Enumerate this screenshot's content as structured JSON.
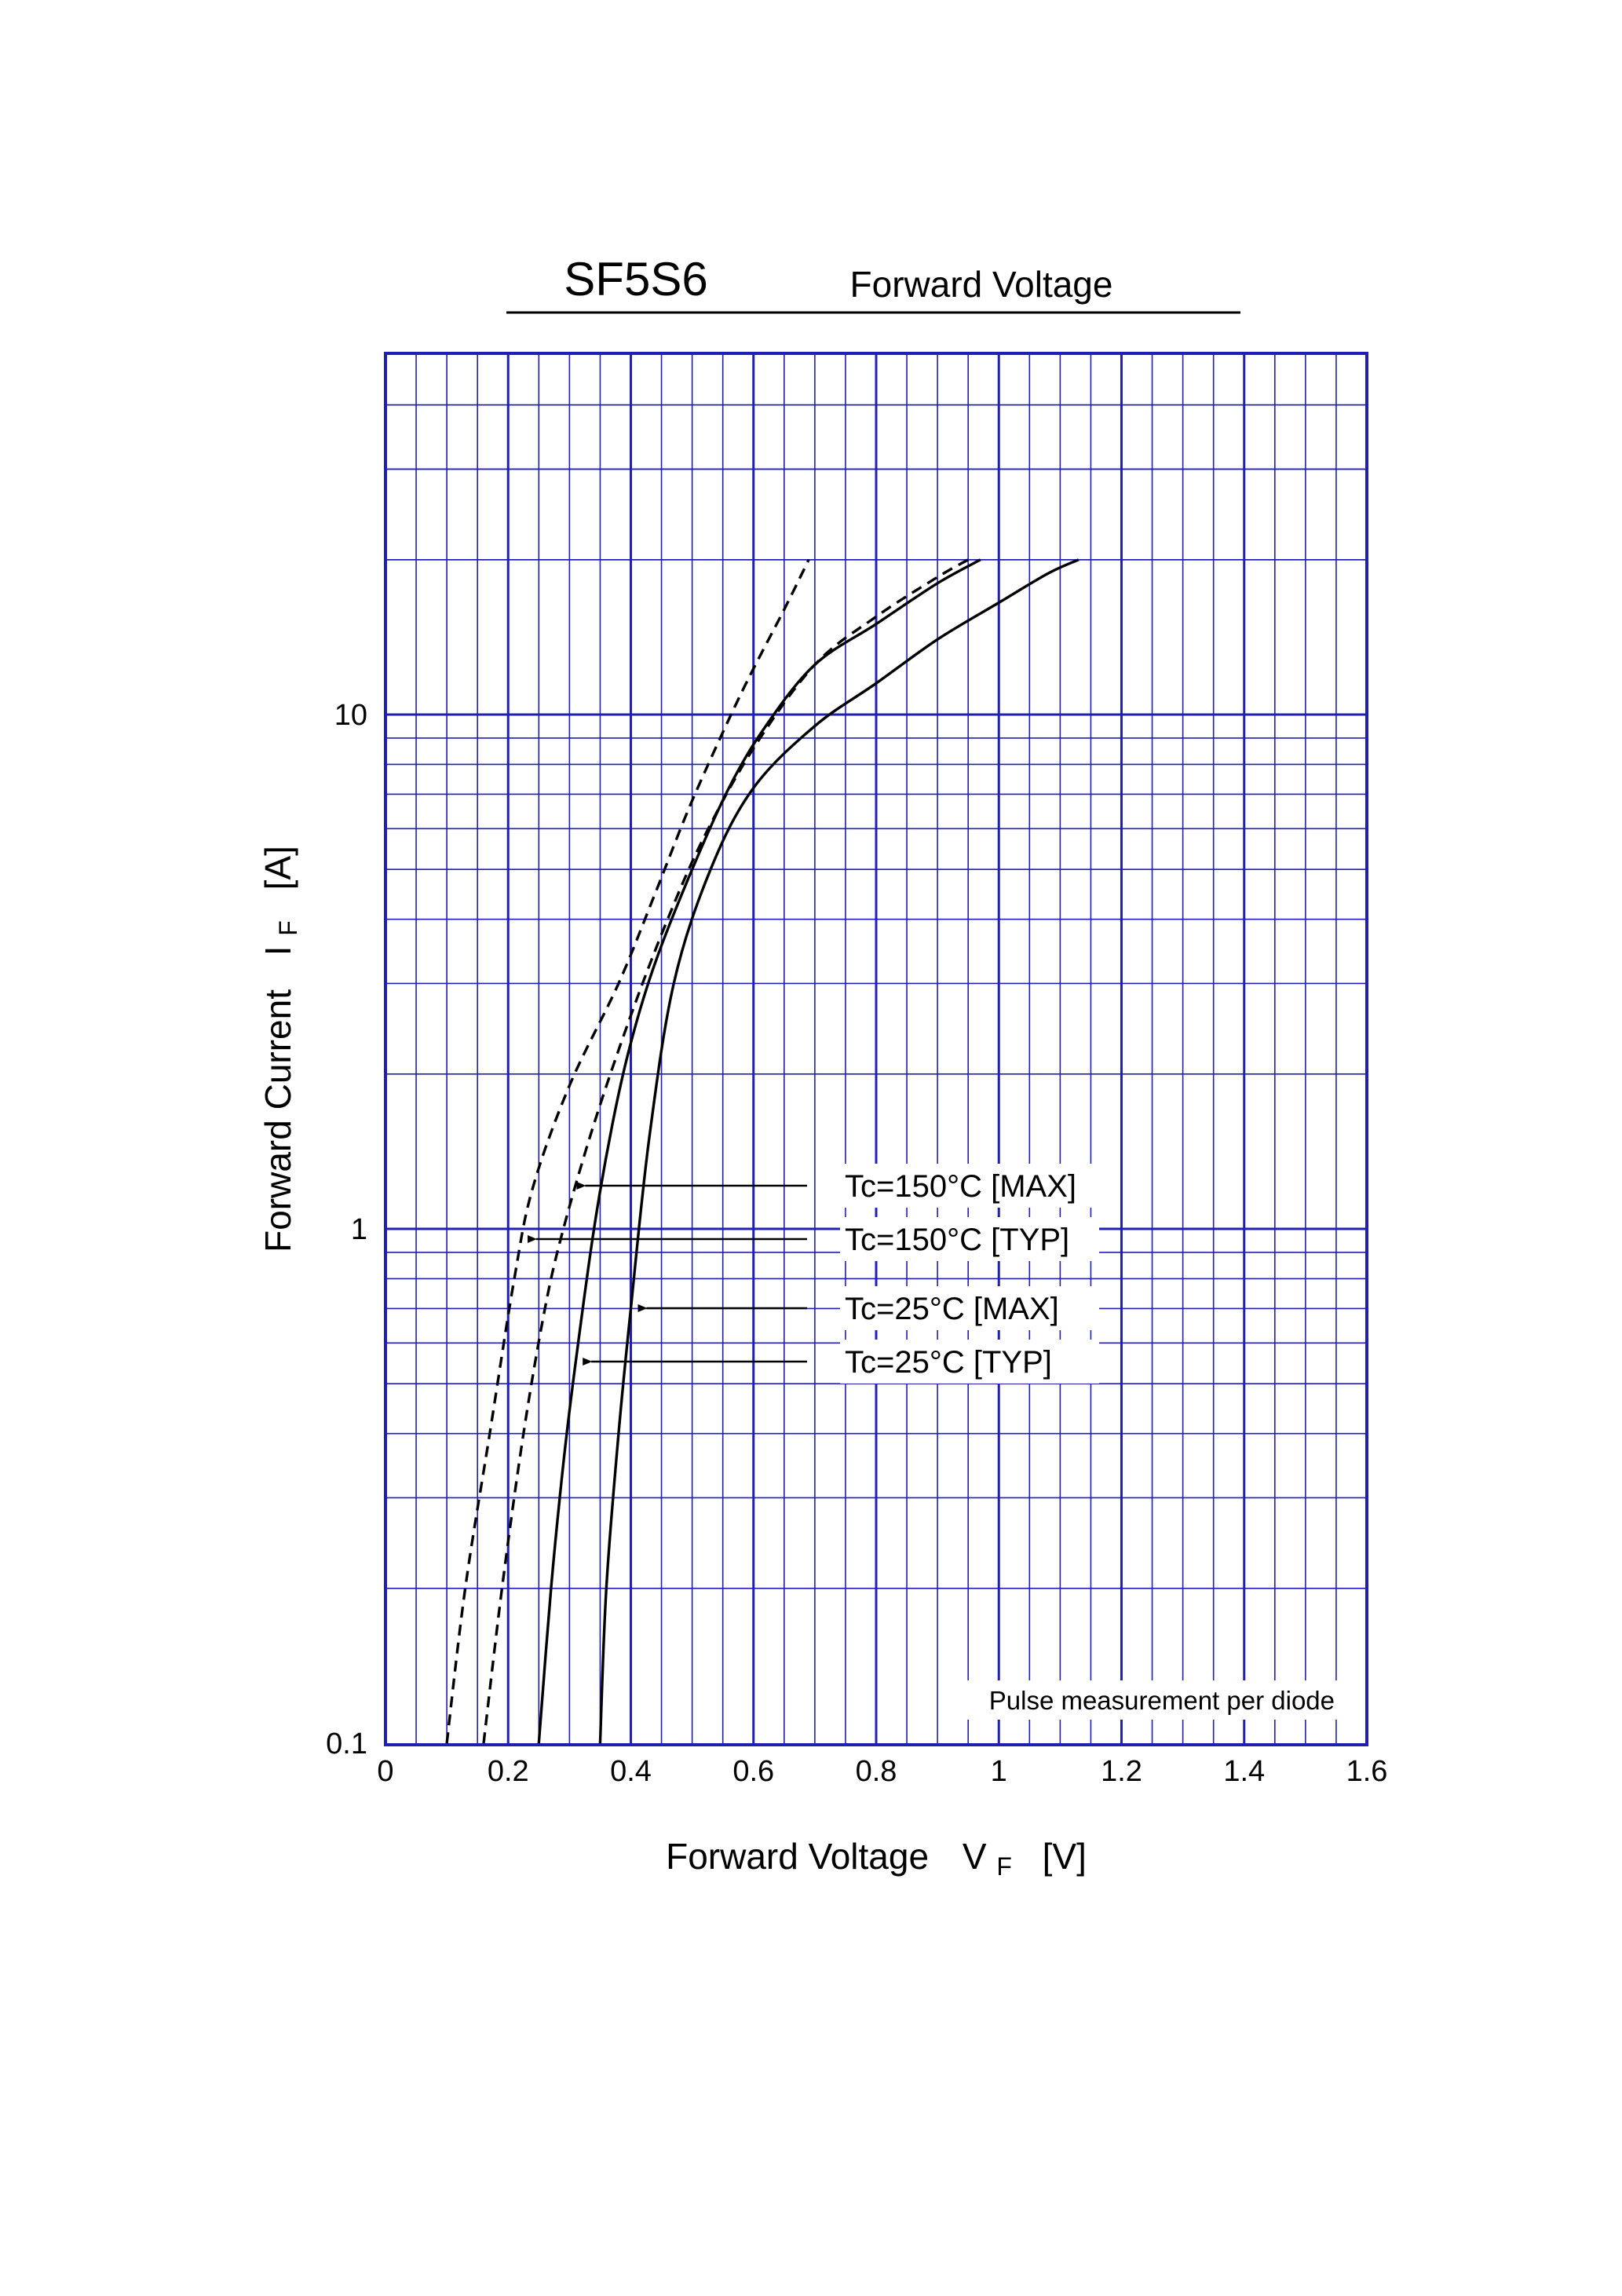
{
  "chart_data": {
    "type": "line",
    "title": "SF5S6",
    "subtitle": "Forward Voltage",
    "xlabel": "Forward Voltage",
    "xlabel_symbol": "V",
    "xlabel_sub": "F",
    "xlabel_unit": "[V]",
    "ylabel": "Forward Current",
    "ylabel_symbol": "I",
    "ylabel_sub": "F",
    "ylabel_unit": "[A]",
    "xlim": [
      0,
      1.6
    ],
    "ylim": [
      0.1,
      50
    ],
    "yscale": "log",
    "grid": true,
    "grid_color": "#1f1fb4",
    "x_ticks": [
      0,
      0.2,
      0.4,
      0.6,
      0.8,
      1.0,
      1.2,
      1.4,
      1.6
    ],
    "x_tick_labels": [
      "0",
      "0.2",
      "0.4",
      "0.6",
      "0.8",
      "1",
      "1.2",
      "1.4",
      "1.6"
    ],
    "y_ticks": [
      0.1,
      1,
      10
    ],
    "y_tick_labels": [
      "0.1",
      "1",
      "10"
    ],
    "note": "Pulse measurement per diode",
    "series": [
      {
        "name": "Tc=150°C [MAX]",
        "style": "dashed",
        "x": [
          0.16,
          0.19,
          0.225,
          0.26,
          0.29,
          0.34,
          0.4,
          0.46,
          0.52,
          0.6,
          0.7,
          0.8,
          0.9,
          0.95
        ],
        "y": [
          0.1,
          0.2,
          0.4,
          0.7,
          1.0,
          1.6,
          2.6,
          4.0,
          5.8,
          8.6,
          12.5,
          15.5,
          18.5,
          20
        ],
        "label_at": {
          "x": 0.3,
          "y": 1.15
        }
      },
      {
        "name": "Tc=150°C [TYP]",
        "style": "dashed",
        "x": [
          0.1,
          0.13,
          0.17,
          0.21,
          0.24,
          0.3,
          0.38,
          0.44,
          0.5,
          0.58,
          0.65,
          0.69
        ],
        "y": [
          0.1,
          0.2,
          0.4,
          0.8,
          1.2,
          1.9,
          3.0,
          4.5,
          6.8,
          11.0,
          16.0,
          20
        ],
        "label_at": {
          "x": 0.22,
          "y": 0.92
        }
      },
      {
        "name": "Tc=25°C [MAX]",
        "style": "solid",
        "x": [
          0.35,
          0.36,
          0.38,
          0.4,
          0.43,
          0.47,
          0.53,
          0.6,
          0.7,
          0.8,
          0.9,
          1.0,
          1.08,
          1.13
        ],
        "y": [
          0.1,
          0.2,
          0.4,
          0.7,
          1.5,
          3.0,
          5.0,
          7.2,
          9.5,
          11.5,
          14.0,
          16.5,
          18.8,
          20
        ],
        "label_at": {
          "x": 0.4,
          "y": 0.65
        }
      },
      {
        "name": "Tc=25°C [TYP]",
        "style": "solid",
        "x": [
          0.25,
          0.27,
          0.29,
          0.31,
          0.34,
          0.37,
          0.4,
          0.44,
          0.5,
          0.56,
          0.62,
          0.7,
          0.8,
          0.9,
          0.97
        ],
        "y": [
          0.1,
          0.2,
          0.35,
          0.55,
          1.0,
          1.6,
          2.3,
          3.3,
          5.0,
          7.2,
          9.5,
          12.5,
          15.0,
          18.0,
          20
        ],
        "label_at": {
          "x": 0.31,
          "y": 0.52
        }
      }
    ]
  }
}
